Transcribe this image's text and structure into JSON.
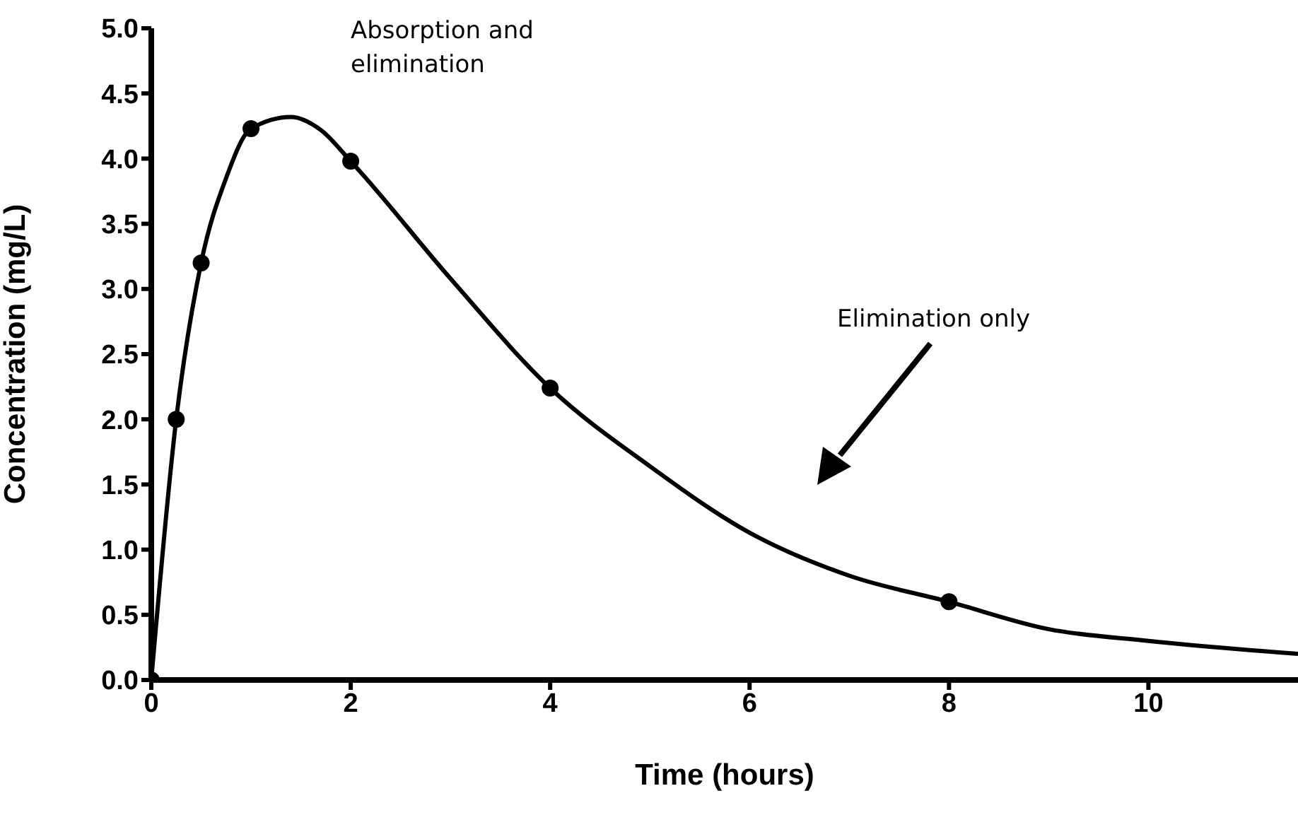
{
  "chart_data": {
    "type": "scatter",
    "xlabel": "Time (hours)",
    "ylabel": "Concentration (mg/L)",
    "annotations": [
      "Absorption and elimination",
      "Elimination only"
    ],
    "xlim": [
      0,
      11.5
    ],
    "xticks": [
      0,
      2,
      4,
      6,
      8,
      10
    ],
    "ylim": [
      0,
      5
    ],
    "yticks": [
      {
        "value": 0,
        "label": "0.0"
      },
      {
        "value": 0.5,
        "label": "0.5"
      },
      {
        "value": 1,
        "label": "1.0"
      },
      {
        "value": 1.5,
        "label": "1.5"
      },
      {
        "value": 2,
        "label": "2.0"
      },
      {
        "value": 2.5,
        "label": "2.5"
      },
      {
        "value": 3,
        "label": "3.0"
      },
      {
        "value": 3.5,
        "label": "3.5"
      },
      {
        "value": 4,
        "label": "4.0"
      },
      {
        "value": 4.5,
        "label": "4.5"
      },
      {
        "value": 5,
        "label": "5.0"
      }
    ],
    "grid": false,
    "series": [
      {
        "type": "line",
        "color": "#000000",
        "marker": "none",
        "x": [
          0,
          0.25,
          0.5,
          0.75,
          1,
          1.4,
          1.7,
          2,
          3,
          4,
          5,
          6,
          7,
          8,
          9,
          10,
          11.5
        ],
        "values": [
          0,
          2.0,
          3.2,
          3.85,
          4.23,
          4.32,
          4.22,
          3.98,
          3.08,
          2.24,
          1.64,
          1.13,
          0.8,
          0.6,
          0.39,
          0.3,
          0.2
        ]
      },
      {
        "color": "#000000",
        "marker": "circle",
        "x": [
          0,
          0.25,
          0.5,
          1,
          2,
          4,
          8
        ],
        "values": [
          0,
          2.0,
          3.2,
          4.23,
          3.98,
          2.24,
          0.6
        ]
      }
    ]
  }
}
